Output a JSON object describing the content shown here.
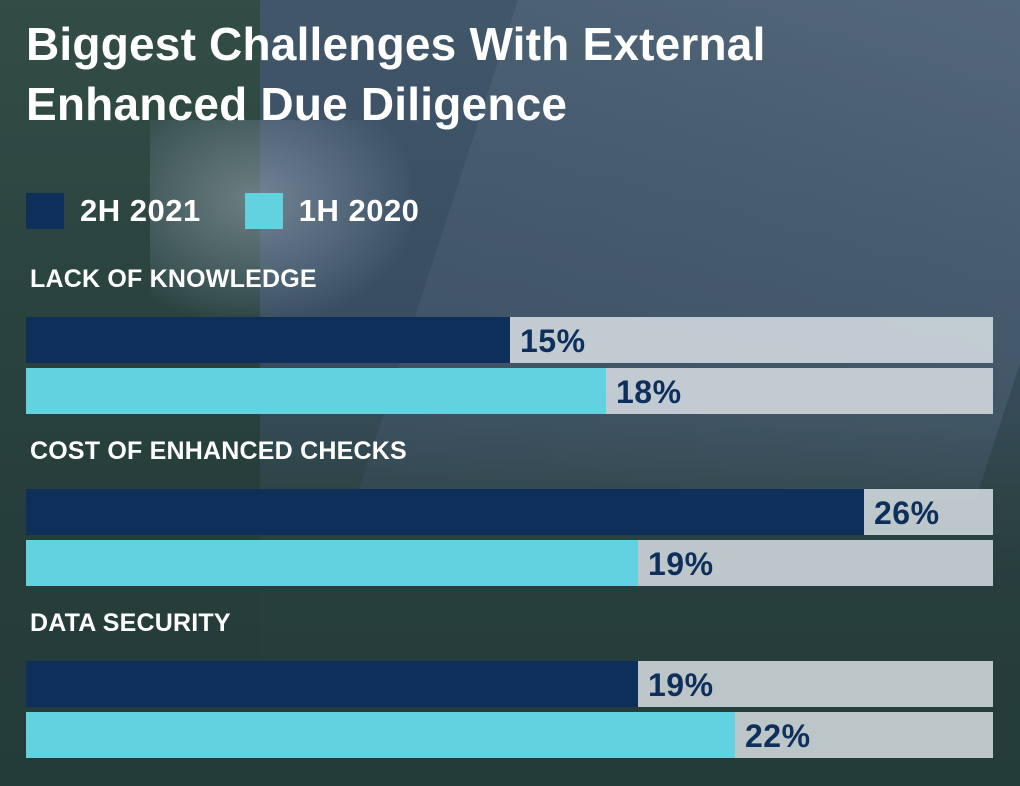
{
  "chart_data": {
    "type": "bar",
    "orientation": "horizontal",
    "title": "Biggest Challenges With External Enhanced Due Diligence",
    "title_lines": [
      "Biggest Challenges With External",
      "Enhanced Due Diligence"
    ],
    "categories": [
      "LACK OF KNOWLEDGE",
      "COST OF ENHANCED CHECKS",
      "DATA SECURITY"
    ],
    "series": [
      {
        "name": "2H 2021",
        "color": "#0d2f5a",
        "values": [
          15,
          26,
          19
        ],
        "labels": [
          "15%",
          "26%",
          "19%"
        ]
      },
      {
        "name": "1H 2020",
        "color": "#62d2e0",
        "values": [
          18,
          19,
          22
        ],
        "labels": [
          "18%",
          "19%",
          "22%"
        ]
      }
    ],
    "xlim": [
      0,
      30
    ],
    "legend_position": "top-left",
    "grid": false
  },
  "colors": {
    "label_text": "#0d2f5a",
    "track": "#e2e8ee"
  }
}
